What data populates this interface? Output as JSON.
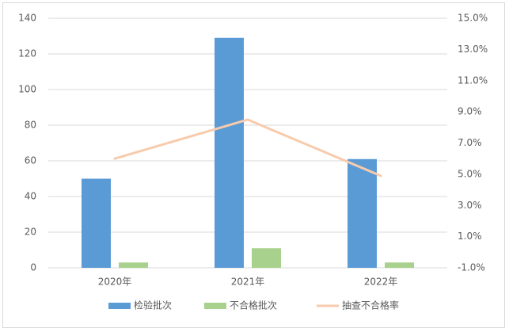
{
  "chart_data": {
    "type": "bar",
    "categories": [
      "2020年",
      "2021年",
      "2022年"
    ],
    "series": [
      {
        "name": "检验批次",
        "type": "bar",
        "color": "#5b9bd5",
        "values": [
          50,
          129,
          61
        ]
      },
      {
        "name": "不合格批次",
        "type": "bar",
        "color": "#a9d18e",
        "values": [
          3,
          11,
          3
        ]
      },
      {
        "name": "抽查不合格率",
        "type": "line",
        "axis": "y2",
        "color": "#f8cbad",
        "values": [
          6.0,
          8.5,
          4.9
        ]
      }
    ],
    "ylim": [
      0,
      140
    ],
    "yticks": [
      0,
      20,
      40,
      60,
      80,
      100,
      120,
      140
    ],
    "y2lim": [
      -1,
      15
    ],
    "y2ticks": [
      {
        "value": -1,
        "label": "-1.0%"
      },
      {
        "value": 1,
        "label": "1.0%"
      },
      {
        "value": 3,
        "label": "3.0%"
      },
      {
        "value": 5,
        "label": "5.0%"
      },
      {
        "value": 7,
        "label": "7.0%"
      },
      {
        "value": 9,
        "label": "9.0%"
      },
      {
        "value": 11,
        "label": "11.0%"
      },
      {
        "value": 13,
        "label": "13.0%"
      },
      {
        "value": 15,
        "label": "15.0%"
      }
    ],
    "grid": true,
    "legend": "bottom"
  }
}
